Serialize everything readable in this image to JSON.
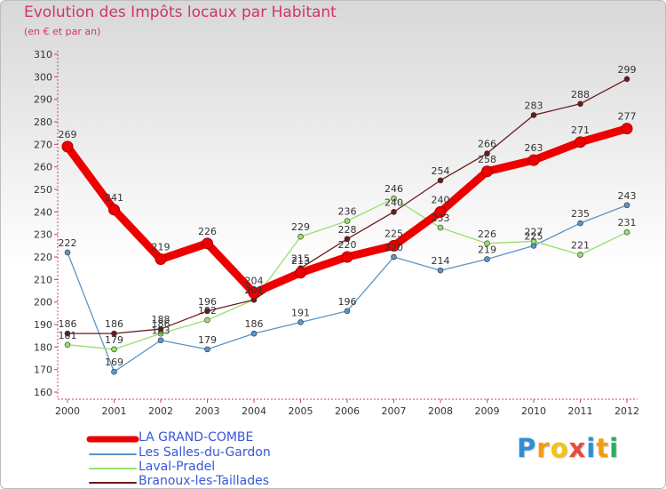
{
  "header": {
    "title": "Evolution des Impôts locaux par Habitant",
    "subtitle": "(en € et par an)"
  },
  "chart_data": {
    "type": "line",
    "title": "Evolution des Impôts locaux par Habitant",
    "ylabel": "(en € et par an)",
    "xlabel": "",
    "ylim": [
      160,
      310
    ],
    "yticks": [
      "160",
      "170",
      "180",
      "190",
      "200",
      "210",
      "220",
      "230",
      "240",
      "250",
      "260",
      "270",
      "280",
      "290",
      "300",
      "310"
    ],
    "categories": [
      "2000",
      "2001",
      "2002",
      "2003",
      "2004",
      "2005",
      "2006",
      "2007",
      "2008",
      "2009",
      "2010",
      "2011",
      "2012"
    ],
    "grid": false,
    "legend": "bottom-left",
    "series": [
      {
        "name": "LA GRAND-COMBE",
        "color": "#ee0000",
        "values": [
          269,
          241,
          219,
          226,
          204,
          213,
          220,
          225,
          240,
          258,
          263,
          271,
          277
        ]
      },
      {
        "name": "Les Salles-du-Gardon",
        "color": "#5b95c9",
        "values": [
          222,
          169,
          183,
          179,
          186,
          191,
          196,
          220,
          214,
          219,
          225,
          235,
          243
        ]
      },
      {
        "name": "Laval-Pradel",
        "color": "#96e06b",
        "values": [
          181,
          179,
          186,
          192,
          201,
          229,
          236,
          246,
          233,
          226,
          227,
          221,
          231
        ]
      },
      {
        "name": "Branoux-les-Taillades",
        "color": "#6b1a1a",
        "values": [
          186,
          186,
          188,
          196,
          201,
          215,
          228,
          240,
          254,
          266,
          283,
          288,
          299
        ]
      }
    ]
  },
  "branding": {
    "logo_text": "Proxiti",
    "logo_colors": [
      "#2f8fd6",
      "#f39c12",
      "#f1c40f",
      "#e74c3c",
      "#2f8fd6",
      "#f39c12",
      "#27ae60"
    ]
  }
}
